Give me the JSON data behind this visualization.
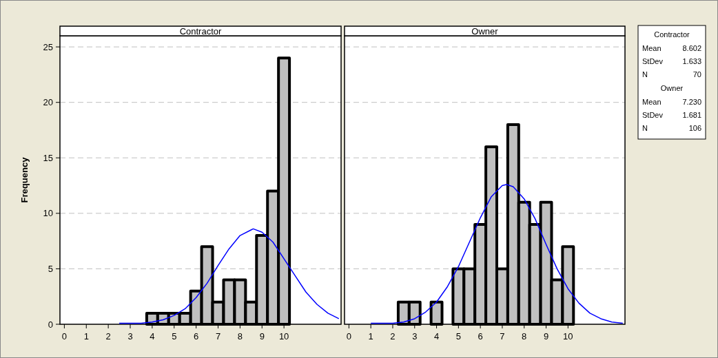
{
  "chart_data": [
    {
      "type": "histogram",
      "title": "Contractor",
      "ylabel": "Frequency",
      "bins": [
        3.75,
        4.25,
        4.75,
        5.25,
        5.75,
        6.25,
        6.75,
        7.25,
        7.75,
        8.25,
        8.75,
        9.25,
        9.75,
        10.25
      ],
      "series": [
        {
          "type": "histogram",
          "color": "#c0c0c0",
          "values": [
            1,
            1,
            1,
            1,
            3,
            7,
            2,
            4,
            4,
            2,
            8,
            12,
            24
          ]
        },
        {
          "type": "line",
          "color": "#0000ff",
          "x": [
            2.5,
            3,
            3.5,
            4,
            4.5,
            5,
            5.5,
            6,
            6.5,
            7,
            7.5,
            8,
            8.5,
            8.6,
            9,
            9.5,
            10,
            10.5,
            11,
            11.5,
            12,
            12.5
          ],
          "values": [
            0.1,
            0.1,
            0.1,
            0.2,
            0.4,
            0.8,
            1.4,
            2.4,
            3.7,
            5.3,
            6.8,
            8,
            8.5,
            8.6,
            8.3,
            7.4,
            5.9,
            4.4,
            2.9,
            1.8,
            1,
            0.5
          ]
        }
      ],
      "xlim": [
        -0.2,
        12.6
      ],
      "xticks": [
        0,
        1,
        2,
        3,
        4,
        5,
        6,
        7,
        8,
        9,
        10
      ],
      "ylim": [
        0,
        26
      ],
      "yticks": [
        0,
        5,
        10,
        15,
        20,
        25
      ],
      "grid": "y"
    },
    {
      "type": "histogram",
      "title": "Owner",
      "bins": [
        2.25,
        2.75,
        3.25,
        3.75,
        4.25,
        4.75,
        5.25,
        5.75,
        6.25,
        6.75,
        7.25,
        7.75,
        8.25,
        8.75,
        9.25,
        9.75,
        10.25
      ],
      "series": [
        {
          "type": "histogram",
          "color": "#c0c0c0",
          "values": [
            2,
            2,
            0,
            2,
            0,
            5,
            5,
            9,
            16,
            5,
            18,
            11,
            9,
            11,
            4,
            7
          ]
        },
        {
          "type": "line",
          "color": "#0000ff",
          "x": [
            1,
            1.5,
            2,
            2.5,
            3,
            3.5,
            4,
            4.5,
            5,
            5.5,
            6,
            6.5,
            7,
            7.2,
            7.5,
            8,
            8.5,
            9,
            9.5,
            10,
            10.5,
            11,
            11.5,
            12,
            12.5
          ],
          "values": [
            0.1,
            0.1,
            0.1,
            0.2,
            0.5,
            1.1,
            2,
            3.4,
            5.2,
            7.4,
            9.6,
            11.5,
            12.5,
            12.6,
            12.4,
            11.3,
            9.5,
            7.2,
            5,
            3.2,
            1.9,
            1,
            0.5,
            0.2,
            0.1
          ]
        }
      ],
      "xlim": [
        -0.2,
        12.6
      ],
      "xticks": [
        0,
        1,
        2,
        3,
        4,
        5,
        6,
        7,
        8,
        9,
        10
      ],
      "ylim": [
        0,
        26
      ],
      "yticks": [
        0,
        5,
        10,
        15,
        20,
        25
      ],
      "grid": "y",
      "tick_labels": "x"
    },
    {
      "type": "other",
      "annotations": [
        "Contractor",
        "Mean",
        "8.602",
        "StDev",
        "1.633",
        "N",
        "70",
        "Owner",
        "Mean",
        "7.230",
        "StDev",
        "1.681",
        "N",
        "106"
      ]
    }
  ]
}
